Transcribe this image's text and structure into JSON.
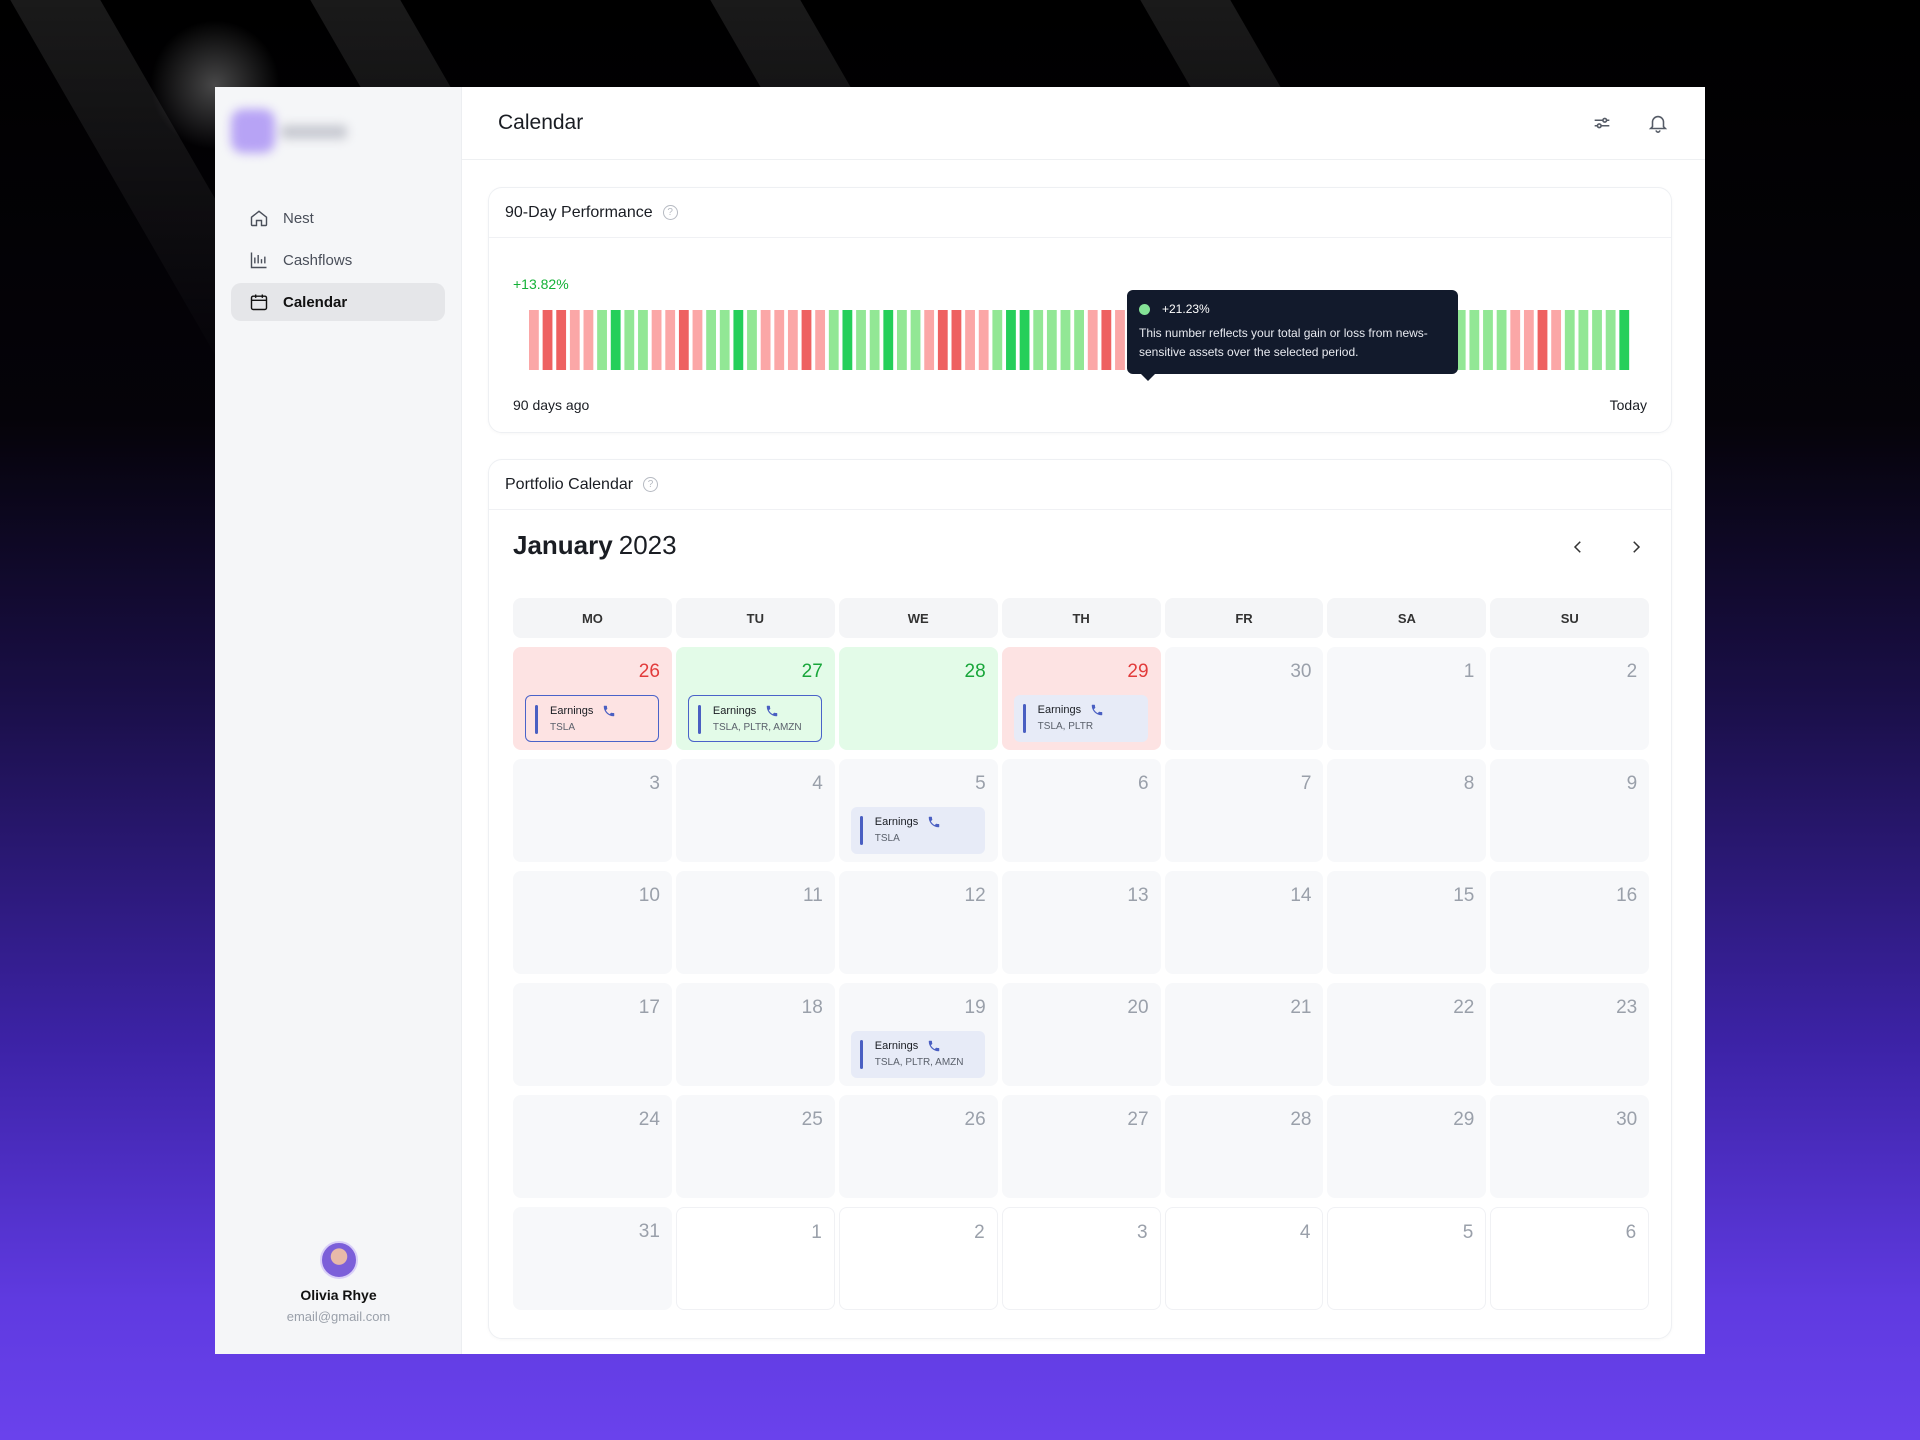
{
  "page": {
    "title": "Calendar"
  },
  "sidebar": {
    "nav": [
      {
        "label": "Nest",
        "icon": "home-icon"
      },
      {
        "label": "Cashflows",
        "icon": "bar-chart-icon"
      },
      {
        "label": "Calendar",
        "icon": "calendar-icon",
        "active": true
      }
    ],
    "profile": {
      "name": "Olivia Rhye",
      "email": "email@gmail.com"
    }
  },
  "topbar": {
    "icons": [
      "filter-sliders-icon",
      "bell-icon"
    ]
  },
  "performance": {
    "title": "90-Day Performance",
    "value": "+13.82%",
    "left_label": "90 days ago",
    "right_label": "Today",
    "tooltip": {
      "value": "+21.23%",
      "text": "This number reflects your total gain or loss from news-sensitive assets over the selected period."
    },
    "colors": {
      "strong_red": "#ee6161",
      "light_red": "#fba7a7",
      "light_green": "#92e795",
      "strong_green": "#25cf5a"
    },
    "days": [
      "lr",
      "sr",
      "sr",
      "lr",
      "lr",
      "lg",
      "sg",
      "lg",
      "lg",
      "lr",
      "lr",
      "sr",
      "lr",
      "lg",
      "lg",
      "sg",
      "lg",
      "lr",
      "lr",
      "lr",
      "sr",
      "lr",
      "lg",
      "sg",
      "lg",
      "lg",
      "sg",
      "lg",
      "lg",
      "lr",
      "sr",
      "sr",
      "lr",
      "lr",
      "lg",
      "sg",
      "sg",
      "lg",
      "lg",
      "lg",
      "lg",
      "lr",
      "sr",
      "lr",
      "lr",
      "lg",
      "sg",
      "lg",
      "lg",
      "lg",
      "lr",
      "sr",
      "lr",
      "lg",
      "lg",
      "lg",
      "lr",
      "lr",
      "lr",
      "sg",
      "sg",
      "sg",
      "lg",
      "lg",
      "lg",
      "lr",
      "lr",
      "sr",
      "lg",
      "lg",
      "lg",
      "lg",
      "lr",
      "lr",
      "sr",
      "lr",
      "lg",
      "lg",
      "lg",
      "lg",
      "sg"
    ]
  },
  "calendar": {
    "title": "Portfolio Calendar",
    "month": "January",
    "year": "2023",
    "weekdays": [
      "MO",
      "TU",
      "WE",
      "TH",
      "FR",
      "SA",
      "SU"
    ],
    "cells": [
      {
        "day": "26",
        "style": "red",
        "event": {
          "title": "Earnings",
          "tickers": "TSLA",
          "outlined": true
        }
      },
      {
        "day": "27",
        "style": "green",
        "event": {
          "title": "Earnings",
          "tickers": "TSLA, PLTR, AMZN",
          "outlined": true
        }
      },
      {
        "day": "28",
        "style": "green"
      },
      {
        "day": "29",
        "style": "red",
        "event": {
          "title": "Earnings",
          "tickers": "TSLA, PLTR"
        }
      },
      {
        "day": "30"
      },
      {
        "day": "1"
      },
      {
        "day": "2"
      },
      {
        "day": "3"
      },
      {
        "day": "4"
      },
      {
        "day": "5",
        "event": {
          "title": "Earnings",
          "tickers": "TSLA"
        }
      },
      {
        "day": "6"
      },
      {
        "day": "7"
      },
      {
        "day": "8"
      },
      {
        "day": "9"
      },
      {
        "day": "10"
      },
      {
        "day": "11"
      },
      {
        "day": "12"
      },
      {
        "day": "13"
      },
      {
        "day": "14"
      },
      {
        "day": "15"
      },
      {
        "day": "16"
      },
      {
        "day": "17"
      },
      {
        "day": "18"
      },
      {
        "day": "19",
        "event": {
          "title": "Earnings",
          "tickers": "TSLA, PLTR, AMZN"
        }
      },
      {
        "day": "20"
      },
      {
        "day": "21"
      },
      {
        "day": "22"
      },
      {
        "day": "23"
      },
      {
        "day": "24"
      },
      {
        "day": "25"
      },
      {
        "day": "26"
      },
      {
        "day": "27"
      },
      {
        "day": "28"
      },
      {
        "day": "29"
      },
      {
        "day": "30"
      },
      {
        "day": "31"
      },
      {
        "day": "1",
        "style": "out"
      },
      {
        "day": "2",
        "style": "out"
      },
      {
        "day": "3",
        "style": "out"
      },
      {
        "day": "4",
        "style": "out"
      },
      {
        "day": "5",
        "style": "out"
      },
      {
        "day": "6",
        "style": "out"
      }
    ]
  }
}
